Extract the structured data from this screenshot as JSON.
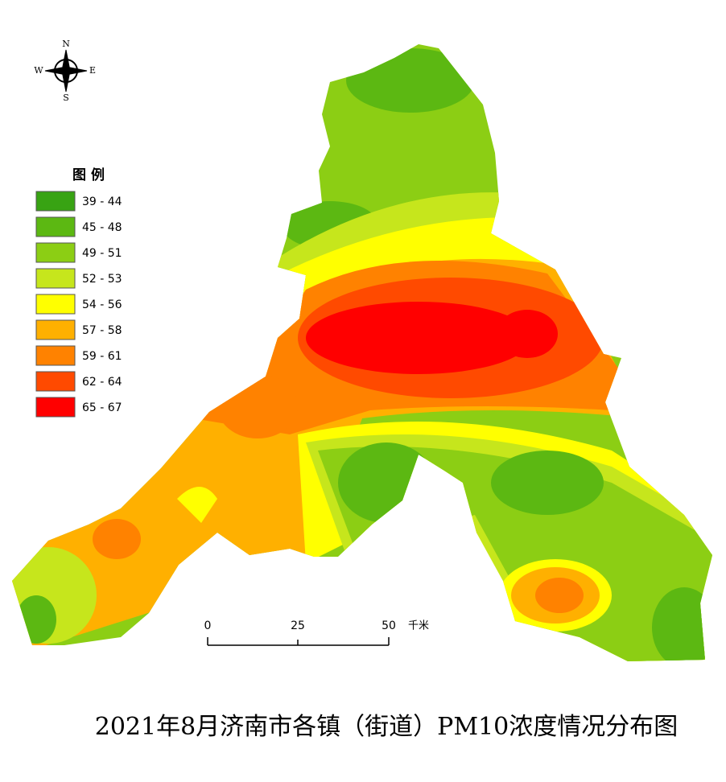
{
  "title": "2021年8月济南市各镇（街道）PM10浓度情况分布图",
  "compass": {
    "n": "N",
    "s": "S",
    "e": "E",
    "w": "W"
  },
  "legend": {
    "title": "图 例",
    "items": [
      {
        "label": "39 - 44",
        "color": "#38a313"
      },
      {
        "label": "45 - 48",
        "color": "#5cb812"
      },
      {
        "label": "49 - 51",
        "color": "#8cce14"
      },
      {
        "label": "52 - 53",
        "color": "#c6e61c"
      },
      {
        "label": "54 - 56",
        "color": "#ffff00"
      },
      {
        "label": "57 - 58",
        "color": "#ffb000"
      },
      {
        "label": "59 - 61",
        "color": "#ff8200"
      },
      {
        "label": "62 - 64",
        "color": "#ff4a00"
      },
      {
        "label": "65 - 67",
        "color": "#ff0000"
      }
    ]
  },
  "scale_bar": {
    "ticks": [
      "0",
      "25",
      "50"
    ],
    "unit": "千米"
  }
}
